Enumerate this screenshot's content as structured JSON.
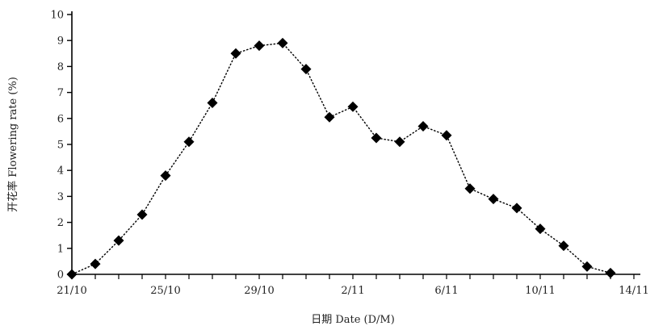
{
  "chart_data": {
    "type": "line",
    "title": "",
    "xlabel": "日期 Date (D/M)",
    "ylabel": "开花率 Flowering rate (%)",
    "ylim": [
      0,
      10
    ],
    "yticks": [
      "0",
      "1",
      "2",
      "3",
      "4",
      "5",
      "6",
      "7",
      "8",
      "9",
      "10"
    ],
    "xticks": [
      {
        "day": 0,
        "label": "21/10"
      },
      {
        "day": 4,
        "label": "25/10"
      },
      {
        "day": 8,
        "label": "29/10"
      },
      {
        "day": 12,
        "label": "2/11"
      },
      {
        "day": 16,
        "label": "6/11"
      },
      {
        "day": 20,
        "label": "10/11"
      },
      {
        "day": 24,
        "label": "14/11"
      }
    ],
    "grid": false,
    "series": [
      {
        "name": "",
        "color": "#000000",
        "marker": "diamond",
        "points": [
          {
            "date": "21/10",
            "day": 0,
            "y": 0.0
          },
          {
            "date": "22/10",
            "day": 1,
            "y": 0.4
          },
          {
            "date": "23/10",
            "day": 2,
            "y": 1.3
          },
          {
            "date": "24/10",
            "day": 3,
            "y": 2.3
          },
          {
            "date": "25/10",
            "day": 4,
            "y": 3.8
          },
          {
            "date": "26/10",
            "day": 5,
            "y": 5.1
          },
          {
            "date": "27/10",
            "day": 6,
            "y": 6.6
          },
          {
            "date": "28/10",
            "day": 7,
            "y": 8.5
          },
          {
            "date": "29/10",
            "day": 8,
            "y": 8.8
          },
          {
            "date": "30/10",
            "day": 9,
            "y": 8.9
          },
          {
            "date": "31/10",
            "day": 10,
            "y": 7.9
          },
          {
            "date": "1/11",
            "day": 11,
            "y": 6.05
          },
          {
            "date": "2/11",
            "day": 12,
            "y": 6.45
          },
          {
            "date": "3/11",
            "day": 13,
            "y": 5.25
          },
          {
            "date": "4/11",
            "day": 14,
            "y": 5.1
          },
          {
            "date": "5/11",
            "day": 15,
            "y": 5.7
          },
          {
            "date": "6/11",
            "day": 16,
            "y": 5.35
          },
          {
            "date": "7/11",
            "day": 17,
            "y": 3.3
          },
          {
            "date": "8/11",
            "day": 18,
            "y": 2.9
          },
          {
            "date": "9/11",
            "day": 19,
            "y": 2.55
          },
          {
            "date": "10/11",
            "day": 20,
            "y": 1.75
          },
          {
            "date": "11/11",
            "day": 21,
            "y": 1.1
          },
          {
            "date": "12/11",
            "day": 22,
            "y": 0.3
          },
          {
            "date": "13/11",
            "day": 23,
            "y": 0.05
          }
        ]
      }
    ]
  }
}
